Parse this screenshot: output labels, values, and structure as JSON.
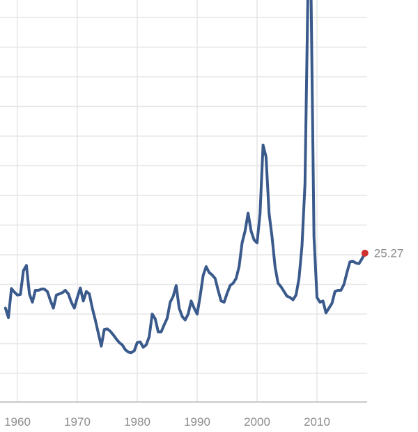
{
  "chart_data": {
    "type": "line",
    "title": "",
    "xlabel": "",
    "ylabel": "",
    "xlim": [
      1958,
      2018.8
    ],
    "ylim": [
      3,
      70
    ],
    "x_ticks": [
      1960,
      1970,
      1980,
      1990,
      2000,
      2010
    ],
    "x_tick_labels": [
      "1960",
      "1970",
      "1980",
      "1990",
      "2000",
      "2010"
    ],
    "y_gridlines": [
      5,
      10,
      15,
      20,
      25,
      30,
      35,
      40,
      45,
      50,
      55,
      60,
      65
    ],
    "y_tick_labels_visible": false,
    "grid": true,
    "legend": "none",
    "series": [
      {
        "color": "#3a5a8c",
        "x": [
          1958.0,
          1958.5,
          1959.0,
          1959.5,
          1960.0,
          1960.5,
          1961.0,
          1961.5,
          1962.0,
          1962.5,
          1963.0,
          1963.5,
          1964.0,
          1964.5,
          1965.0,
          1965.5,
          1966.0,
          1966.5,
          1967.0,
          1967.5,
          1968.0,
          1968.5,
          1969.0,
          1969.5,
          1970.0,
          1970.5,
          1971.0,
          1971.5,
          1972.0,
          1972.5,
          1973.0,
          1973.5,
          1974.0,
          1974.5,
          1975.0,
          1975.5,
          1976.0,
          1976.5,
          1977.0,
          1977.5,
          1978.0,
          1978.5,
          1979.0,
          1979.5,
          1980.0,
          1980.5,
          1981.0,
          1981.5,
          1982.0,
          1982.5,
          1983.0,
          1983.5,
          1984.0,
          1984.5,
          1985.0,
          1985.5,
          1986.0,
          1986.5,
          1987.0,
          1987.5,
          1988.0,
          1988.5,
          1989.0,
          1989.5,
          1990.0,
          1990.5,
          1991.0,
          1991.5,
          1992.0,
          1992.5,
          1993.0,
          1993.5,
          1994.0,
          1994.5,
          1995.0,
          1995.5,
          1996.0,
          1996.5,
          1997.0,
          1997.5,
          1998.0,
          1998.5,
          1999.0,
          1999.5,
          2000.0,
          2000.5,
          2001.0,
          2001.5,
          2002.0,
          2002.5,
          2003.0,
          2003.5,
          2004.0,
          2004.5,
          2005.0,
          2005.5,
          2006.0,
          2006.5,
          2007.0,
          2007.5,
          2008.0,
          2008.5,
          2009.0,
          2009.5,
          2010.0,
          2010.5,
          2011.0,
          2011.5,
          2012.0,
          2012.5,
          2013.0,
          2013.5,
          2014.0,
          2014.5,
          2015.0,
          2015.5,
          2016.0,
          2016.5,
          2017.0,
          2017.5,
          2018.0
        ],
        "values": [
          16.0,
          14.4,
          19.3,
          18.7,
          18.2,
          18.3,
          22.3,
          23.2,
          18.4,
          17.0,
          19.0,
          19.0,
          19.2,
          19.2,
          18.8,
          17.3,
          16.0,
          18.2,
          18.4,
          18.6,
          19.0,
          18.4,
          17.0,
          16.0,
          17.8,
          19.4,
          17.2,
          18.8,
          18.4,
          16.0,
          14.0,
          11.8,
          9.6,
          12.4,
          12.5,
          12.1,
          11.5,
          10.8,
          10.2,
          9.8,
          9.0,
          8.6,
          8.5,
          8.8,
          10.2,
          10.3,
          9.4,
          9.8,
          11.2,
          15.0,
          14.2,
          12.0,
          12.0,
          13.2,
          14.3,
          17.0,
          18.0,
          19.8,
          16.0,
          14.6,
          14.0,
          15.0,
          17.2,
          16.0,
          15.0,
          18.0,
          21.5,
          23.0,
          22.0,
          21.6,
          21.0,
          19.0,
          17.2,
          17.0,
          18.5,
          19.8,
          20.2,
          21.0,
          23.0,
          27.0,
          29.0,
          32.0,
          29.0,
          27.5,
          27.0,
          32.0,
          43.5,
          41.5,
          32.0,
          28.0,
          23.0,
          20.2,
          19.6,
          18.8,
          18.0,
          17.8,
          17.4,
          18.2,
          21.0,
          26.5,
          37.0,
          70.0,
          70.0,
          28.0,
          17.8,
          17.0,
          17.2,
          15.2,
          16.0,
          16.8,
          18.8,
          19.0,
          19.0,
          20.0,
          22.0,
          23.8,
          23.9,
          23.6,
          23.5,
          24.3,
          25.27
        ]
      }
    ],
    "last_point": {
      "x": 2018.0,
      "value": 25.27,
      "label": "25.27",
      "color": "#d0312d"
    }
  }
}
